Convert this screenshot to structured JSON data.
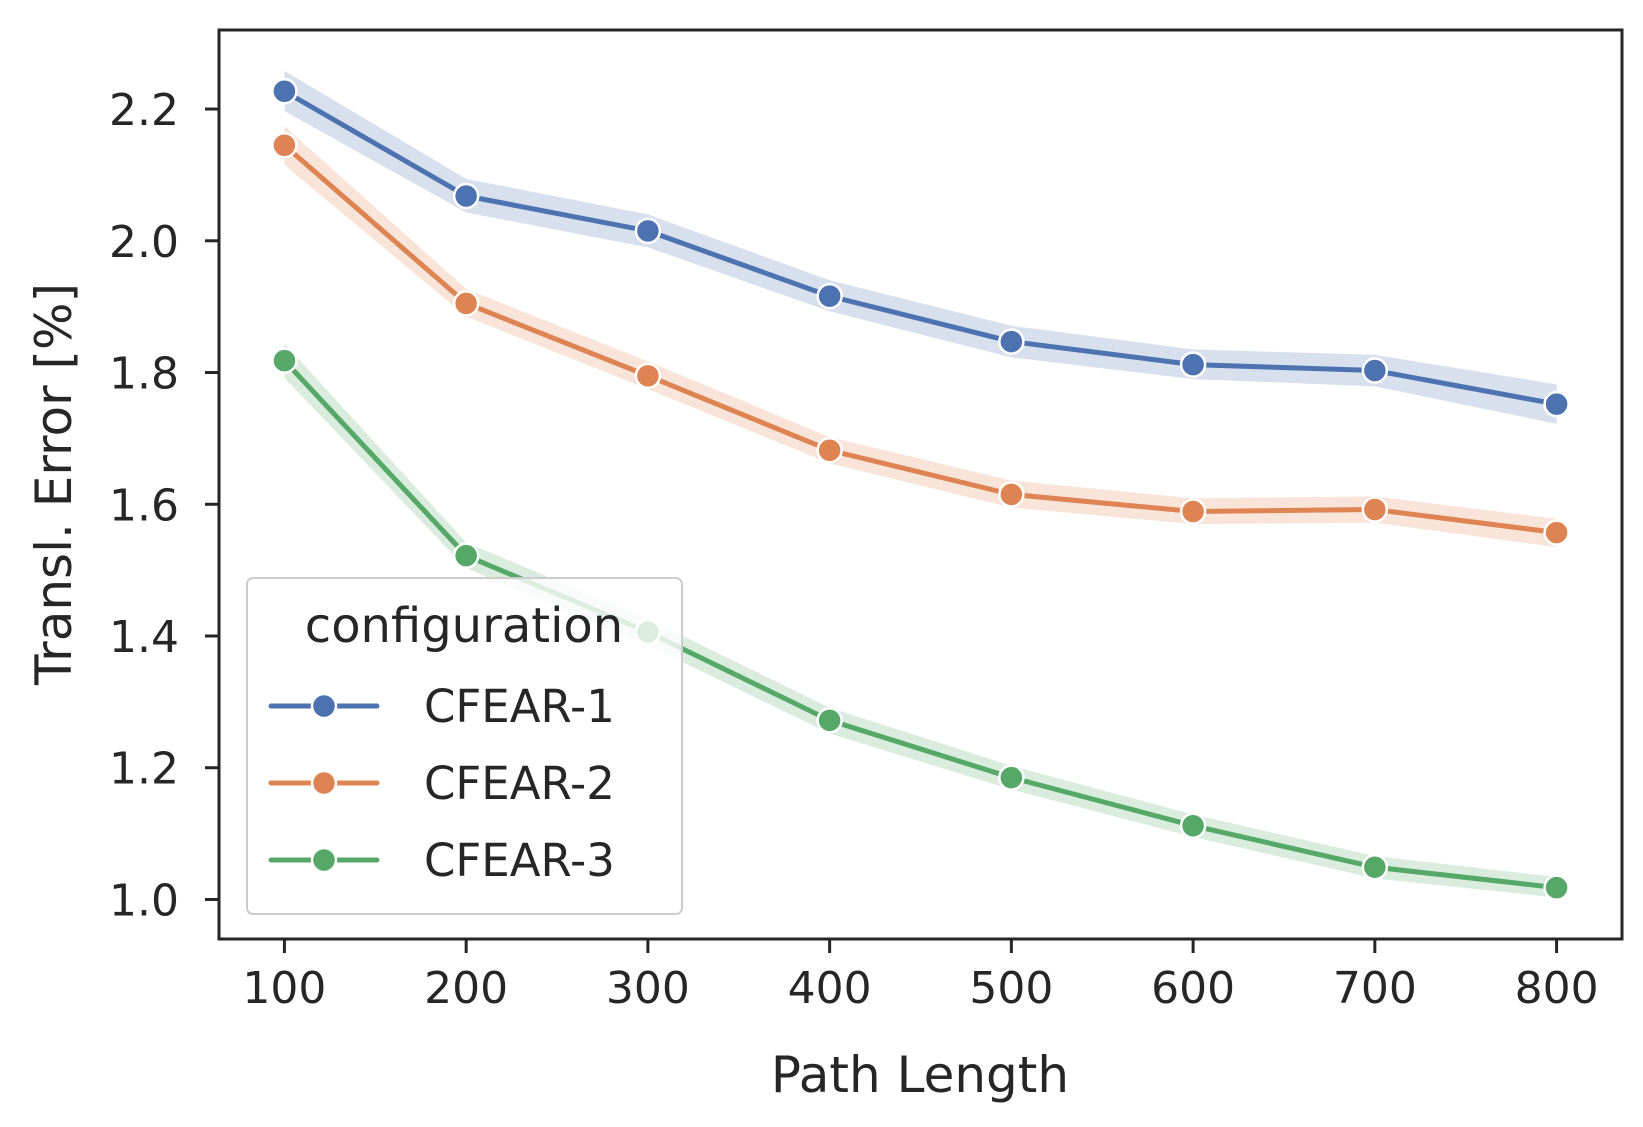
{
  "chart_data": {
    "type": "line",
    "xlabel": "Path Length",
    "ylabel": "Transl. Error [%]",
    "x": [
      100,
      200,
      300,
      400,
      500,
      600,
      700,
      800
    ],
    "xticks": [
      "100",
      "200",
      "300",
      "400",
      "500",
      "600",
      "700",
      "800"
    ],
    "yticks": [
      "1.0",
      "1.2",
      "1.4",
      "1.6",
      "1.8",
      "2.0",
      "2.2"
    ],
    "ytick_values": [
      1.0,
      1.2,
      1.4,
      1.6,
      1.8,
      2.0,
      2.2
    ],
    "xlim": [
      64,
      836
    ],
    "ylim": [
      0.94,
      2.32
    ],
    "grid": false,
    "confidence_band": true,
    "legend": {
      "title": "configuration",
      "placement": "lower-left"
    },
    "series": [
      {
        "name": "CFEAR-1",
        "color": "#4c72b0",
        "values": [
          2.227,
          2.068,
          2.015,
          1.916,
          1.847,
          1.812,
          1.803,
          1.752
        ],
        "ci_low": [
          2.197,
          2.043,
          1.99,
          1.893,
          1.823,
          1.79,
          1.779,
          1.722
        ],
        "ci_high": [
          2.258,
          2.094,
          2.04,
          1.94,
          1.871,
          1.835,
          1.827,
          1.782
        ]
      },
      {
        "name": "CFEAR-2",
        "color": "#dd8452",
        "values": [
          2.145,
          1.905,
          1.795,
          1.682,
          1.615,
          1.589,
          1.592,
          1.557
        ],
        "ci_low": [
          2.115,
          1.885,
          1.775,
          1.662,
          1.595,
          1.57,
          1.572,
          1.535
        ],
        "ci_high": [
          2.174,
          1.927,
          1.817,
          1.702,
          1.636,
          1.609,
          1.612,
          1.578
        ]
      },
      {
        "name": "CFEAR-3",
        "color": "#55a868",
        "values": [
          1.818,
          1.522,
          1.406,
          1.272,
          1.185,
          1.112,
          1.049,
          1.018
        ],
        "ci_low": [
          1.792,
          1.503,
          1.386,
          1.252,
          1.167,
          1.095,
          1.032,
          1.003
        ],
        "ci_high": [
          1.844,
          1.542,
          1.426,
          1.291,
          1.203,
          1.129,
          1.066,
          1.034
        ]
      }
    ]
  }
}
